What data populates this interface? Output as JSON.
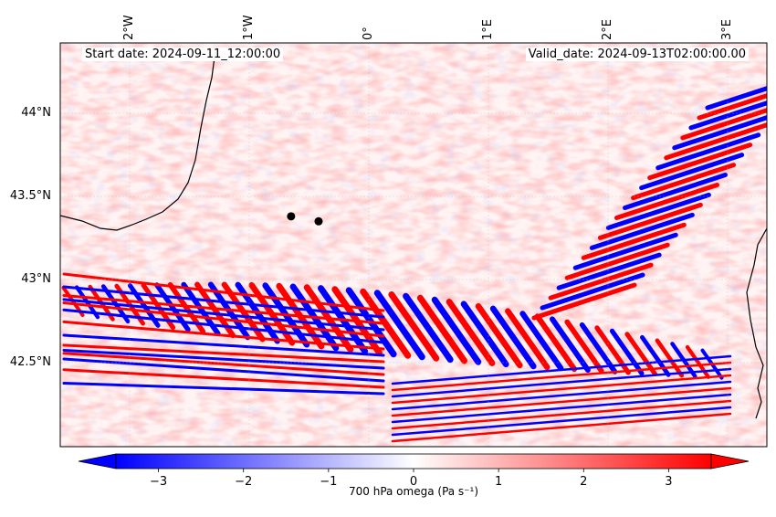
{
  "map": {
    "start_date": "Start date: 2024-09-11_12:00:00",
    "valid_date": "Valid_date: 2024-09-13T02:00:00.00",
    "lon_ticks": [
      "2°W",
      "1°W",
      "0°",
      "1°E",
      "2°E",
      "3°E"
    ],
    "lat_ticks": [
      "44°N",
      "43.5°N",
      "43°N",
      "42.5°N"
    ],
    "markers": [
      {
        "lon": -0.65,
        "lat": 43.38
      },
      {
        "lon": -0.42,
        "lat": 43.35
      }
    ],
    "colors": {
      "negative": "#0000ff",
      "zero": "#ffffff",
      "positive": "#ff0000",
      "coastline": "#000000",
      "marker": "#000000"
    }
  },
  "colorbar": {
    "label": "700 hPa omega (Pa s⁻¹)",
    "ticks": [
      "−3",
      "−2",
      "−1",
      "0",
      "1",
      "2",
      "3"
    ],
    "range": [
      -3.5,
      3.5
    ],
    "extend": "both"
  }
}
